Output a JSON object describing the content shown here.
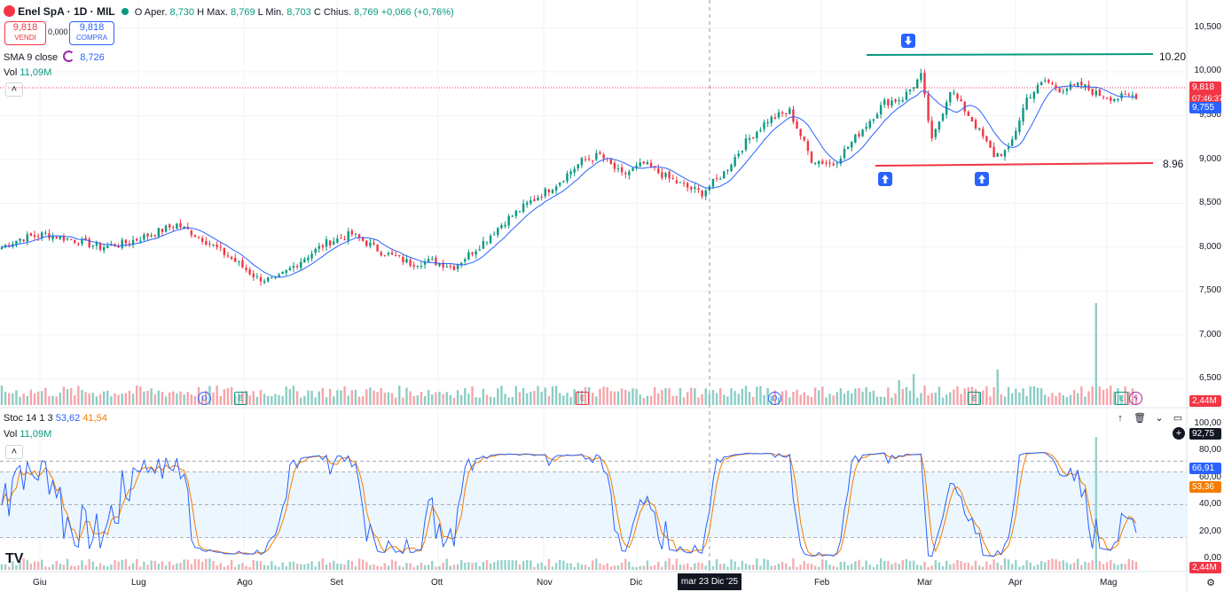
{
  "header": {
    "symbol": "Enel SpA · 1D · MIL",
    "open_label": "O",
    "open_prefix": "Aper.",
    "open_value": "8,730",
    "high_label": "H",
    "high_prefix": "Max.",
    "high_value": "8,769",
    "low_label": "L",
    "low_prefix": "Min.",
    "low_value": "8,703",
    "close_label": "C",
    "close_prefix": "Chius.",
    "close_value": "8,769",
    "change": "+0,066 (+0,76%)"
  },
  "trade": {
    "sell_price": "9,818",
    "sell_label": "VENDI",
    "spread": "0,000",
    "buy_price": "9,818",
    "buy_label": "COMPRA"
  },
  "indicators": {
    "sma_label": "SMA 9 close",
    "sma_value": "8,726",
    "vol_label": "Vol",
    "vol_value": "11,09M"
  },
  "stoch_legend": {
    "label": "Stoc 14 1 3",
    "k_value": "53,62",
    "d_value": "41,54",
    "vol_label": "Vol",
    "vol_value": "11,09M"
  },
  "price_axis": [
    "10,500",
    "10,000",
    "9,500",
    "9,000",
    "8,500",
    "8,000",
    "7,500",
    "7,000",
    "6,500"
  ],
  "stoch_axis": [
    "100,00",
    "80,00",
    "60,00",
    "40,00",
    "20,00",
    "0,00"
  ],
  "time_axis": [
    "Giu",
    "Lug",
    "Ago",
    "Set",
    "Ott",
    "Nov",
    "Dic",
    "Feb",
    "Mar",
    "Apr",
    "Mag"
  ],
  "crosshair_date": "mar 23 Dic '25",
  "badges": {
    "last_price": "9,818",
    "countdown": "07:46:37",
    "sma_price": "9,755",
    "volume": "2,44M",
    "stoch_top": "92,75",
    "stoch_k": "66,91",
    "stoch_d": "53,36",
    "stoch_vol": "2,44M"
  },
  "annotations": {
    "resistance_label": "10.20",
    "support_label": "8.96"
  },
  "event_markers": [
    "D",
    "E",
    "E",
    "D",
    "E",
    "E"
  ],
  "icons": [
    "up-arrow-icon",
    "down-arrow-icon",
    "settings-gear-icon",
    "trash-icon",
    "eye-off-icon",
    "maximize-icon",
    "plus-icon",
    "collapse-chevron-icon"
  ],
  "colors": {
    "up": "#089981",
    "down": "#f23645",
    "sma": "#2962ff",
    "stoch_k": "#2962ff",
    "stoch_d": "#f57c00",
    "support": "#f23645",
    "resistance": "#089981"
  },
  "chart_data": [
    {
      "type": "candlestick",
      "title": "Enel SpA · 1D · MIL",
      "ylim": [
        6400,
        10700
      ],
      "x_range": [
        "Giu",
        "Mag"
      ],
      "series": [
        {
          "name": "SMA 9 close"
        }
      ],
      "anchors_close": [
        [
          0,
          8000
        ],
        [
          5,
          8100
        ],
        [
          12,
          8150
        ],
        [
          20,
          8080
        ],
        [
          27,
          8000
        ],
        [
          34,
          8050
        ],
        [
          41,
          8150
        ],
        [
          48,
          8260
        ],
        [
          55,
          8100
        ],
        [
          62,
          7900
        ],
        [
          70,
          7650
        ],
        [
          75,
          7620
        ],
        [
          82,
          7850
        ],
        [
          89,
          8050
        ],
        [
          96,
          8150
        ],
        [
          104,
          7950
        ],
        [
          112,
          7820
        ],
        [
          118,
          7840
        ],
        [
          124,
          7780
        ],
        [
          131,
          8020
        ],
        [
          138,
          8300
        ],
        [
          145,
          8520
        ],
        [
          152,
          8720
        ],
        [
          159,
          8980
        ],
        [
          164,
          9050
        ],
        [
          170,
          8820
        ],
        [
          176,
          8950
        ],
        [
          183,
          8780
        ],
        [
          188,
          8680
        ],
        [
          192,
          8620
        ],
        [
          198,
          8850
        ],
        [
          204,
          9200
        ],
        [
          210,
          9450
        ],
        [
          216,
          9550
        ],
        [
          222,
          9000
        ],
        [
          228,
          8950
        ],
        [
          235,
          9300
        ],
        [
          242,
          9650
        ],
        [
          247,
          9700
        ],
        [
          252,
          9950
        ],
        [
          255,
          9200
        ],
        [
          260,
          9800
        ],
        [
          266,
          9450
        ],
        [
          272,
          9050
        ],
        [
          276,
          9100
        ],
        [
          281,
          9700
        ],
        [
          286,
          9900
        ],
        [
          290,
          9800
        ],
        [
          296,
          9850
        ],
        [
          300,
          9750
        ],
        [
          305,
          9700
        ],
        [
          310,
          9730
        ]
      ],
      "levels": {
        "resistance": 10.2,
        "support": 8.96
      }
    },
    {
      "type": "line",
      "title": "Stoc 14 1 3",
      "ylim": [
        0,
        100
      ],
      "series": [
        {
          "name": "%K"
        },
        {
          "name": "%D"
        }
      ],
      "bands": [
        20,
        80
      ]
    }
  ]
}
